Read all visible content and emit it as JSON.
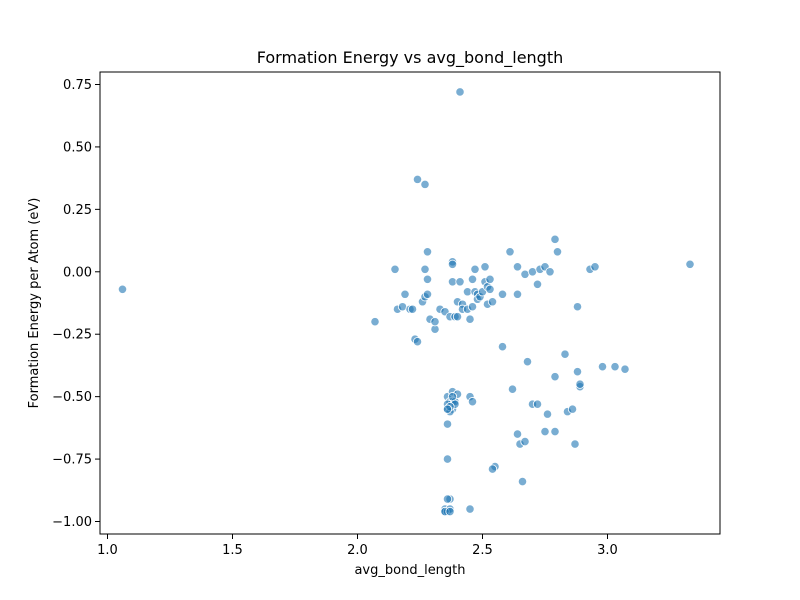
{
  "chart_data": {
    "type": "scatter",
    "title": "Formation Energy vs avg_bond_length",
    "xlabel": "avg_bond_length",
    "ylabel": "Formation Energy per Atom (eV)",
    "xlim": [
      0.97,
      3.45
    ],
    "ylim": [
      -1.05,
      0.8
    ],
    "xticks": [
      1.0,
      1.5,
      2.0,
      2.5,
      3.0
    ],
    "xtick_labels": [
      "1.0",
      "1.5",
      "2.0",
      "2.5",
      "3.0"
    ],
    "yticks": [
      0.75,
      0.5,
      0.25,
      0.0,
      -0.25,
      -0.5,
      -0.75,
      -1.0
    ],
    "ytick_labels": [
      "0.75",
      "0.50",
      "0.25",
      "0.00",
      "−0.25",
      "−0.50",
      "−0.75",
      "−1.00"
    ],
    "grid": false,
    "color": "#1f77b4",
    "points": [
      [
        1.06,
        -0.07
      ],
      [
        2.07,
        -0.2
      ],
      [
        2.15,
        0.01
      ],
      [
        2.16,
        -0.15
      ],
      [
        2.18,
        -0.14
      ],
      [
        2.19,
        -0.09
      ],
      [
        2.21,
        -0.15
      ],
      [
        2.22,
        -0.15
      ],
      [
        2.23,
        -0.27
      ],
      [
        2.24,
        -0.28
      ],
      [
        2.24,
        0.37
      ],
      [
        2.26,
        -0.12
      ],
      [
        2.27,
        0.35
      ],
      [
        2.27,
        -0.1
      ],
      [
        2.27,
        0.01
      ],
      [
        2.28,
        0.08
      ],
      [
        2.28,
        -0.03
      ],
      [
        2.28,
        -0.09
      ],
      [
        2.29,
        -0.19
      ],
      [
        2.31,
        -0.23
      ],
      [
        2.31,
        -0.2
      ],
      [
        2.33,
        -0.15
      ],
      [
        2.35,
        -0.16
      ],
      [
        2.36,
        -0.5
      ],
      [
        2.36,
        -0.55
      ],
      [
        2.36,
        -0.75
      ],
      [
        2.36,
        -0.61
      ],
      [
        2.37,
        -0.18
      ],
      [
        2.37,
        -0.52
      ],
      [
        2.38,
        -0.48
      ],
      [
        2.38,
        -0.52
      ],
      [
        2.38,
        -0.55
      ],
      [
        2.38,
        0.04
      ],
      [
        2.38,
        0.03
      ],
      [
        2.38,
        -0.04
      ],
      [
        2.39,
        -0.18
      ],
      [
        2.39,
        -0.52
      ],
      [
        2.4,
        -0.49
      ],
      [
        2.4,
        -0.18
      ],
      [
        2.4,
        -0.12
      ],
      [
        2.41,
        0.72
      ],
      [
        2.41,
        -0.04
      ],
      [
        2.42,
        -0.13
      ],
      [
        2.42,
        -0.15
      ],
      [
        2.44,
        -0.08
      ],
      [
        2.44,
        -0.15
      ],
      [
        2.45,
        -0.19
      ],
      [
        2.45,
        -0.5
      ],
      [
        2.46,
        -0.52
      ],
      [
        2.46,
        -0.14
      ],
      [
        2.46,
        -0.03
      ],
      [
        2.47,
        0.01
      ],
      [
        2.47,
        -0.08
      ],
      [
        2.48,
        -0.09
      ],
      [
        2.48,
        -0.11
      ],
      [
        2.49,
        -0.1
      ],
      [
        2.5,
        -0.08
      ],
      [
        2.51,
        0.02
      ],
      [
        2.51,
        -0.04
      ],
      [
        2.52,
        -0.06
      ],
      [
        2.52,
        -0.13
      ],
      [
        2.53,
        -0.03
      ],
      [
        2.53,
        -0.07
      ],
      [
        2.54,
        -0.12
      ],
      [
        2.55,
        -0.78
      ],
      [
        2.54,
        -0.79
      ],
      [
        2.58,
        -0.09
      ],
      [
        2.58,
        -0.3
      ],
      [
        2.61,
        0.08
      ],
      [
        2.62,
        -0.47
      ],
      [
        2.64,
        -0.65
      ],
      [
        2.64,
        0.02
      ],
      [
        2.64,
        -0.09
      ],
      [
        2.65,
        -0.69
      ],
      [
        2.66,
        -0.84
      ],
      [
        2.67,
        -0.68
      ],
      [
        2.67,
        -0.01
      ],
      [
        2.68,
        -0.36
      ],
      [
        2.7,
        -0.53
      ],
      [
        2.7,
        0.0
      ],
      [
        2.72,
        -0.53
      ],
      [
        2.72,
        -0.05
      ],
      [
        2.73,
        0.01
      ],
      [
        2.75,
        0.02
      ],
      [
        2.75,
        -0.64
      ],
      [
        2.76,
        -0.57
      ],
      [
        2.77,
        0.0
      ],
      [
        2.79,
        -0.42
      ],
      [
        2.79,
        -0.64
      ],
      [
        2.79,
        0.13
      ],
      [
        2.8,
        0.08
      ],
      [
        2.83,
        -0.33
      ],
      [
        2.84,
        -0.56
      ],
      [
        2.86,
        -0.55
      ],
      [
        2.87,
        -0.69
      ],
      [
        2.88,
        -0.14
      ],
      [
        2.88,
        -0.4
      ],
      [
        2.89,
        -0.46
      ],
      [
        2.89,
        -0.45
      ],
      [
        2.93,
        0.01
      ],
      [
        2.95,
        0.02
      ],
      [
        2.98,
        -0.38
      ],
      [
        3.03,
        -0.38
      ],
      [
        3.07,
        -0.39
      ],
      [
        3.33,
        0.03
      ],
      [
        2.35,
        -0.95
      ],
      [
        2.35,
        -0.96
      ],
      [
        2.36,
        -0.96
      ],
      [
        2.37,
        -0.95
      ],
      [
        2.37,
        -0.91
      ],
      [
        2.36,
        -0.91
      ],
      [
        2.35,
        -0.96
      ],
      [
        2.37,
        -0.96
      ],
      [
        2.45,
        -0.95
      ],
      [
        2.36,
        -0.53
      ],
      [
        2.37,
        -0.56
      ],
      [
        2.38,
        -0.5
      ],
      [
        2.39,
        -0.53
      ],
      [
        2.37,
        -0.54
      ],
      [
        2.36,
        -0.55
      ]
    ]
  }
}
